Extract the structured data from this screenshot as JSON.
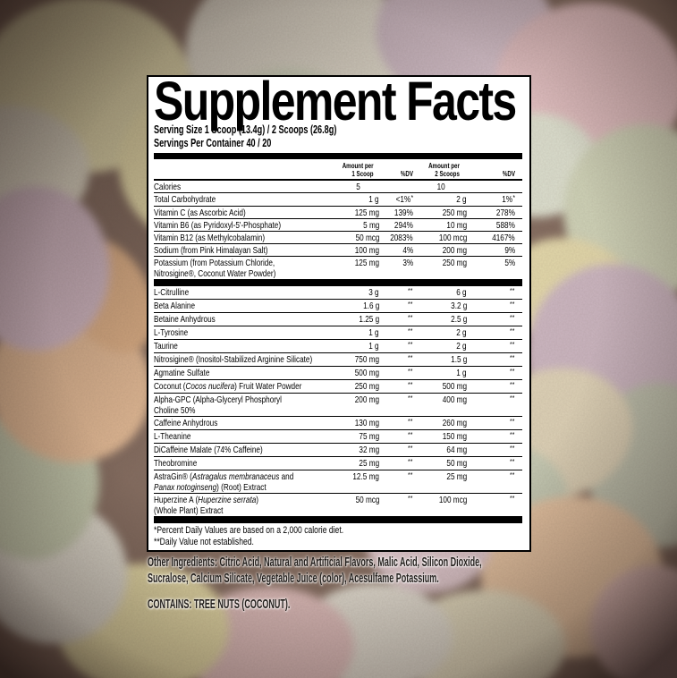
{
  "title": "Supplement Facts",
  "serving": {
    "line1": "Serving Size 1 Scoop (13.4g) / 2 Scoops (26.8g)",
    "line2": "Servings Per Container 40 / 20"
  },
  "header": {
    "amt1_l1": "Amount per",
    "amt1_l2": "1 Scoop",
    "dv1": "%DV",
    "amt2_l1": "Amount per",
    "amt2_l2": "2 Scoops",
    "dv2": "%DV"
  },
  "sections": [
    {
      "rows": [
        {
          "name": [
            {
              "t": "Calories"
            }
          ],
          "amt1": "5",
          "dv1": "",
          "amt2": "10",
          "dv2": ""
        },
        {
          "name": [
            {
              "t": "Total Carbohydrate"
            }
          ],
          "amt1": "1 g",
          "dv1": "<1%*",
          "amt2": "2 g",
          "dv2": "1%*"
        },
        {
          "name": [
            {
              "t": "Vitamin C (as Ascorbic Acid)"
            }
          ],
          "amt1": "125 mg",
          "dv1": "139%",
          "amt2": "250 mg",
          "dv2": "278%"
        },
        {
          "name": [
            {
              "t": "Vitamin B6 (as Pyridoxyl-5'-Phosphate)"
            }
          ],
          "amt1": "5 mg",
          "dv1": "294%",
          "amt2": "10 mg",
          "dv2": "588%"
        },
        {
          "name": [
            {
              "t": "Vitamin B12 (as Methylcobalamin)"
            }
          ],
          "amt1": "50 mcg",
          "dv1": "2083%",
          "amt2": "100 mcg",
          "dv2": "4167%"
        },
        {
          "name": [
            {
              "t": "Sodium (from Pink Himalayan Salt)"
            }
          ],
          "amt1": "100 mg",
          "dv1": "4%",
          "amt2": "200 mg",
          "dv2": "9%"
        },
        {
          "name": [
            {
              "t": "Potassium (from Potassium Chloride,"
            },
            {
              "br": true
            },
            {
              "t": "Nitrosigine®, Coconut Water Powder)"
            }
          ],
          "amt1": "125 mg",
          "dv1": "3%",
          "amt2": "250 mg",
          "dv2": "5%"
        }
      ]
    },
    {
      "rows": [
        {
          "name": [
            {
              "t": "L-Citrulline"
            }
          ],
          "amt1": "3 g",
          "dv1": "**",
          "amt2": "6 g",
          "dv2": "**"
        },
        {
          "name": [
            {
              "t": "Beta Alanine"
            }
          ],
          "amt1": "1.6 g",
          "dv1": "**",
          "amt2": "3.2 g",
          "dv2": "**"
        },
        {
          "name": [
            {
              "t": "Betaine Anhydrous"
            }
          ],
          "amt1": "1.25 g",
          "dv1": "**",
          "amt2": "2.5 g",
          "dv2": "**"
        },
        {
          "name": [
            {
              "t": "L-Tyrosine"
            }
          ],
          "amt1": "1 g",
          "dv1": "**",
          "amt2": "2 g",
          "dv2": "**"
        },
        {
          "name": [
            {
              "t": "Taurine"
            }
          ],
          "amt1": "1 g",
          "dv1": "**",
          "amt2": "2 g",
          "dv2": "**"
        },
        {
          "name": [
            {
              "t": "Nitrosigine® (Inositol-Stabilized Arginine Silicate)"
            }
          ],
          "amt1": "750 mg",
          "dv1": "**",
          "amt2": "1.5 g",
          "dv2": "**"
        },
        {
          "name": [
            {
              "t": "Agmatine Sulfate"
            }
          ],
          "amt1": "500 mg",
          "dv1": "**",
          "amt2": "1 g",
          "dv2": "**"
        },
        {
          "name": [
            {
              "t": "Coconut ("
            },
            {
              "t": "Cocos nucifera",
              "i": true
            },
            {
              "t": ") Fruit Water Powder"
            }
          ],
          "amt1": "250 mg",
          "dv1": "**",
          "amt2": "500 mg",
          "dv2": "**"
        },
        {
          "name": [
            {
              "t": "Alpha-GPC (Alpha-Glyceryl Phosphoryl"
            },
            {
              "br": true
            },
            {
              "t": "Choline 50%"
            }
          ],
          "amt1": "200 mg",
          "dv1": "**",
          "amt2": "400 mg",
          "dv2": "**"
        },
        {
          "name": [
            {
              "t": "Caffeine Anhydrous"
            }
          ],
          "amt1": "130 mg",
          "dv1": "**",
          "amt2": "260 mg",
          "dv2": "**"
        },
        {
          "name": [
            {
              "t": "L-Theanine"
            }
          ],
          "amt1": "75 mg",
          "dv1": "**",
          "amt2": "150 mg",
          "dv2": "**"
        },
        {
          "name": [
            {
              "t": "DiCaffeine Malate (74% Caffeine)"
            }
          ],
          "amt1": "32 mg",
          "dv1": "**",
          "amt2": "64 mg",
          "dv2": "**"
        },
        {
          "name": [
            {
              "t": "Theobromine"
            }
          ],
          "amt1": "25 mg",
          "dv1": "**",
          "amt2": "50 mg",
          "dv2": "**"
        },
        {
          "name": [
            {
              "t": "AstraGin® ("
            },
            {
              "t": "Astragalus membranaceus",
              "i": true
            },
            {
              "t": " and"
            },
            {
              "br": true
            },
            {
              "t": "Panax notoginseng",
              "i": true
            },
            {
              "t": ") (Root) Extract"
            }
          ],
          "amt1": "12.5 mg",
          "dv1": "**",
          "amt2": "25 mg",
          "dv2": "**"
        },
        {
          "name": [
            {
              "t": "Huperzine A ("
            },
            {
              "t": "Huperzine serrata",
              "i": true
            },
            {
              "t": ")"
            },
            {
              "br": true
            },
            {
              "t": "(Whole Plant) Extract"
            }
          ],
          "amt1": "50 mcg",
          "dv1": "**",
          "amt2": "100 mcg",
          "dv2": "**"
        }
      ]
    }
  ],
  "footnotes": {
    "note1": "*Percent Daily Values are based on a 2,000 calorie diet.",
    "note2": "**Daily Value not established."
  },
  "other_ingredients": "Other Ingredients: Citric Acid, Natural and Artificial Flavors, Malic Acid, Silicon Dioxide, Sucralose, Calcium Silicate, Vegetable Juice (color), Acesulfame Potassium.",
  "contains": "CONTAINS: TREE NUTS (COCONUT)."
}
